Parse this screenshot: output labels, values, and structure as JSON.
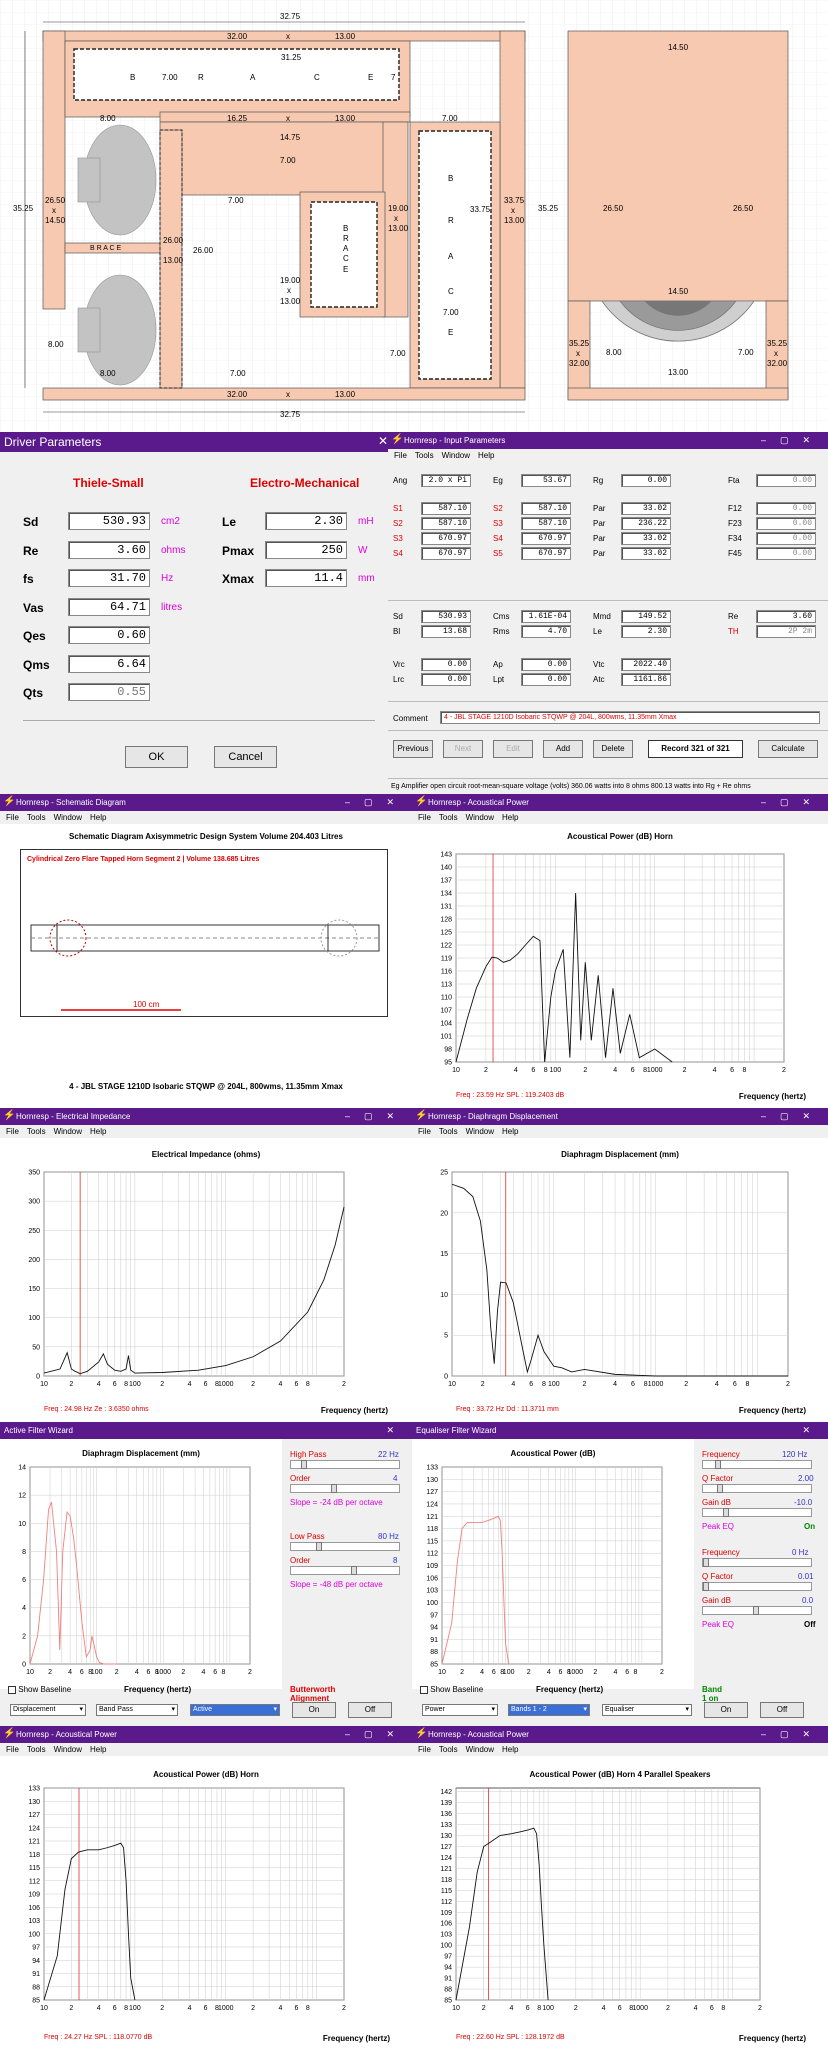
{
  "plan": {
    "top_dim": "32.75",
    "bottom_dim": "32.75",
    "left_dim": "35.25",
    "mid_right_dim": "35.25",
    "top_run": "32.00",
    "top_x": "x",
    "top_run_b": "13.00",
    "inner_top": "31.25",
    "brace_top": [
      "B",
      "7.00",
      "R",
      "A",
      "C",
      "E",
      "7"
    ],
    "r2_a": "8.00",
    "r2_b": "16.25",
    "r2_x": "x",
    "r2_c": "13.00",
    "r2_d": "7.00",
    "h1475": "14.75",
    "v700a": "7.00",
    "v700b": "7.00",
    "left_2650": "26.50",
    "left_x": "x",
    "left_1450": "14.50",
    "brace_mid": "B R A C E",
    "v2600a": "26.00",
    "v2600b": "26.00",
    "v1300": "13.00",
    "c19a": "19.00",
    "c19x": "x",
    "c19b": "13.00",
    "brace_c": [
      "B",
      "R",
      "A",
      "C",
      "E"
    ],
    "c19c": "19.00",
    "c19y": "x",
    "c19d": "13.00",
    "c3375": "33.75",
    "c3375b": "33.75",
    "c3375x": "x",
    "c3375c": "13.00",
    "brace_r": [
      "B",
      "R",
      "A",
      "C",
      "7.00",
      "E"
    ],
    "left_800": "8.00",
    "bl_800": "8.00",
    "bm_700": "7.00",
    "br_700": "7.00",
    "bot_run": "32.00",
    "bot_x": "x",
    "bot_run_b": "13.00",
    "side_1450a": "14.50",
    "side_2650a": "26.50",
    "side_2650b": "26.50",
    "side_1450b": "14.50",
    "side_3525a": "35.25",
    "side_x1": "x",
    "side_3200a": "32.00",
    "side_3525b": "35.25",
    "side_x2": "x",
    "side_3200b": "32.00",
    "side_800": "8.00",
    "side_1300": "13.00",
    "side_700": "7.00"
  },
  "driver": {
    "title": "Driver Parameters",
    "ts": "Thiele-Small",
    "em": "Electro-Mechanical",
    "rows": [
      {
        "label": "Sd",
        "value": "530.93",
        "unit": "cm2"
      },
      {
        "label": "Re",
        "value": "3.60",
        "unit": "ohms"
      },
      {
        "label": "fs",
        "value": "31.70",
        "unit": "Hz"
      },
      {
        "label": "Vas",
        "value": "64.71",
        "unit": "litres"
      },
      {
        "label": "Qes",
        "value": "0.60",
        "unit": ""
      },
      {
        "label": "Qms",
        "value": "6.64",
        "unit": ""
      },
      {
        "label": "Qts",
        "value": "0.55",
        "unit": ""
      }
    ],
    "rrows": [
      {
        "label": "Le",
        "value": "2.30",
        "unit": "mH"
      },
      {
        "label": "Pmax",
        "value": "250",
        "unit": "W"
      },
      {
        "label": "Xmax",
        "value": "11.4",
        "unit": "mm"
      }
    ],
    "ok": "OK",
    "cancel": "Cancel"
  },
  "input": {
    "title": "Hornresp - Input Parameters",
    "menu": [
      "File",
      "Tools",
      "Window",
      "Help"
    ],
    "r1": [
      {
        "l": "Ang",
        "v": "2.0 x Pi"
      },
      {
        "l": "Eg",
        "v": "53.67"
      },
      {
        "l": "Rg",
        "v": "0.00"
      },
      {
        "l": "Fta",
        "v": "0.00"
      }
    ],
    "grid": [
      [
        {
          "l": "S1",
          "v": "587.10"
        },
        {
          "l": "S2",
          "v": "587.10"
        },
        {
          "l": "Par",
          "v": "33.02"
        },
        {
          "l": "F12",
          "v": "0.00"
        }
      ],
      [
        {
          "l": "S2",
          "v": "587.10"
        },
        {
          "l": "S3",
          "v": "587.10"
        },
        {
          "l": "Par",
          "v": "236.22"
        },
        {
          "l": "F23",
          "v": "0.00"
        }
      ],
      [
        {
          "l": "S3",
          "v": "670.97"
        },
        {
          "l": "S4",
          "v": "670.97"
        },
        {
          "l": "Par",
          "v": "33.02"
        },
        {
          "l": "F34",
          "v": "0.00"
        }
      ],
      [
        {
          "l": "S4",
          "v": "670.97"
        },
        {
          "l": "S5",
          "v": "670.97"
        },
        {
          "l": "Par",
          "v": "33.02"
        },
        {
          "l": "F45",
          "v": "0.00"
        }
      ]
    ],
    "drv": [
      [
        {
          "l": "Sd",
          "v": "530.93"
        },
        {
          "l": "Cms",
          "v": "1.61E-04"
        },
        {
          "l": "Mmd",
          "v": "149.52"
        },
        {
          "l": "Re",
          "v": "3.60"
        }
      ],
      [
        {
          "l": "Bl",
          "v": "13.68"
        },
        {
          "l": "Rms",
          "v": "4.70"
        },
        {
          "l": "Le",
          "v": "2.30"
        },
        {
          "l": "TH",
          "v": "2P 2m"
        }
      ]
    ],
    "ch": [
      [
        {
          "l": "Vrc",
          "v": "0.00"
        },
        {
          "l": "Ap",
          "v": "0.00"
        },
        {
          "l": "Vtc",
          "v": "2022.40"
        }
      ],
      [
        {
          "l": "Lrc",
          "v": "0.00"
        },
        {
          "l": "Lpt",
          "v": "0.00"
        },
        {
          "l": "Atc",
          "v": "1161.86"
        }
      ]
    ],
    "comment_label": "Comment",
    "comment": "4 - JBL STAGE 1210D Isobaric STQWP @ 204L, 800wms, 11.35mm Xmax",
    "buttons": [
      "Previous",
      "Next",
      "Edit",
      "Add",
      "Delete"
    ],
    "record": "Record 321 of 321",
    "calc": "Calculate",
    "status": "Eg  Amplifier open circuit root-mean-square voltage  (volts)   360.06 watts into 8 ohms   800.13 watts into Rg + Re ohms"
  },
  "schem": {
    "title": "Hornresp - Schematic Diagram",
    "menu": [
      "File",
      "Tools",
      "Window",
      "Help"
    ],
    "heading": "Schematic Diagram   Axisymmetric Design   System Volume 204.403 Litres",
    "red": "Cylindrical Zero Flare Tapped Horn Segment 2 | Volume 138.685 Litres",
    "scale": "100 cm",
    "caption": "4 - JBL STAGE 1210D Isobaric STQWP @ 204L, 800wms, 11.35mm Xmax"
  },
  "ap1": {
    "title": "Hornresp - Acoustical Power",
    "menu": [
      "File",
      "Tools",
      "Window",
      "Help"
    ],
    "heading": "Acoustical Power (dB)   Horn",
    "status": "Freq : 23.59 Hz     SPL : 119.2403 dB",
    "xlabel": "Frequency (hertz)"
  },
  "imp": {
    "title": "Hornresp - Electrical Impedance",
    "menu": [
      "File",
      "Tools",
      "Window",
      "Help"
    ],
    "heading": "Electrical Impedance (ohms)",
    "status": "Freq : 24.98 Hz     Ze : 3.6350 ohms",
    "xlabel": "Frequency (hertz)"
  },
  "dd": {
    "title": "Hornresp - Diaphragm Displacement",
    "menu": [
      "File",
      "Tools",
      "Window",
      "Help"
    ],
    "heading": "Diaphragm Displacement (mm)",
    "status": "Freq : 33.72 Hz     Dd : 11.3711 mm",
    "xlabel": "Frequency (hertz)"
  },
  "afw": {
    "title": "Active Filter Wizard",
    "heading": "Diaphragm Displacement (mm)",
    "xlabel": "Frequency (hertz)",
    "show": "Show Baseline",
    "align": "Butterworth Alignment",
    "hp": "High Pass",
    "hp_v": "22 Hz",
    "order": "Order",
    "order_v": "4",
    "slope1": "Slope = -24 dB per octave",
    "lp": "Low Pass",
    "lp_v": "80 Hz",
    "order2": "Order",
    "order2_v": "8",
    "slope2": "Slope = -48 dB per octave",
    "s1": "Displacement",
    "s2": "Band Pass",
    "s3": "Active",
    "on": "On",
    "off": "Off"
  },
  "efw": {
    "title": "Equaliser Filter Wizard",
    "heading": "Acoustical Power (dB)",
    "xlabel": "Frequency (hertz)",
    "show": "Show Baseline",
    "band": "Band 1 on",
    "f1": "Frequency",
    "f1v": "120 Hz",
    "q1": "Q Factor",
    "q1v": "2.00",
    "g1": "Gain  dB",
    "g1v": "-10.0",
    "pk1": "Peak EQ",
    "pk1v": "On",
    "f2": "Frequency",
    "f2v": "0 Hz",
    "q2": "Q Factor",
    "q2v": "0.01",
    "g2": "Gain  dB",
    "g2v": "0.0",
    "pk2": "Peak EQ",
    "pk2v": "Off",
    "s1": "Power",
    "s2": "Bands 1 - 2",
    "s3": "Equaliser",
    "on": "On",
    "off": "Off"
  },
  "ap2": {
    "title": "Hornresp - Acoustical Power",
    "menu": [
      "File",
      "Tools",
      "Window",
      "Help"
    ],
    "heading": "Acoustical Power (dB)   Horn",
    "status": "Freq : 24.27 Hz     SPL : 118.0770 dB",
    "xlabel": "Frequency (hertz)"
  },
  "ap3": {
    "title": "Hornresp - Acoustical Power",
    "menu": [
      "File",
      "Tools",
      "Window",
      "Help"
    ],
    "heading": "Acoustical Power (dB)   Horn   4 Parallel Speakers",
    "status": "Freq : 22.60 Hz     SPL : 128.1972 dB",
    "xlabel": "Frequency (hertz)"
  },
  "chart_data": [
    {
      "type": "line",
      "id": "ap1",
      "title": "Acoustical Power (dB)   Horn",
      "xlabel": "Frequency (hertz)",
      "xscale": "log",
      "xlim": [
        10,
        20000
      ],
      "ylim": [
        95,
        143
      ],
      "yticks": [
        95,
        98,
        101,
        104,
        107,
        110,
        113,
        116,
        119,
        122,
        125,
        128,
        131,
        134,
        137,
        140,
        143
      ],
      "marker_hz": 23.59,
      "x": [
        10,
        13,
        16,
        20,
        23,
        26,
        30,
        35,
        42,
        50,
        60,
        70,
        78,
        90,
        100,
        120,
        140,
        160,
        180,
        200,
        230,
        270,
        320,
        380,
        450,
        560,
        700,
        1000,
        1500
      ],
      "y": [
        95,
        105,
        112,
        117,
        119.2,
        119,
        118,
        118.5,
        120,
        122,
        124,
        123,
        95,
        110,
        116,
        121,
        96,
        134,
        100,
        118,
        100,
        115,
        96,
        112,
        97,
        106,
        96,
        98,
        95
      ]
    },
    {
      "type": "line",
      "id": "imp",
      "title": "Electrical Impedance (ohms)",
      "xlabel": "Frequency (hertz)",
      "xscale": "log",
      "xlim": [
        10,
        20000
      ],
      "ylim": [
        0,
        350
      ],
      "yticks": [
        0,
        50,
        100,
        150,
        200,
        250,
        300,
        350
      ],
      "marker_hz": 24.98,
      "x": [
        10,
        15,
        18,
        20,
        22,
        25,
        30,
        40,
        45,
        50,
        60,
        70,
        80,
        85,
        90,
        100,
        200,
        500,
        1000,
        2000,
        4000,
        8000,
        12000,
        16000,
        20000
      ],
      "y": [
        5,
        12,
        40,
        12,
        8,
        4,
        8,
        24,
        38,
        20,
        10,
        8,
        12,
        35,
        10,
        5,
        6,
        10,
        18,
        33,
        60,
        110,
        165,
        225,
        290
      ]
    },
    {
      "type": "line",
      "id": "dd",
      "title": "Diaphragm Displacement (mm)",
      "xlabel": "Frequency (hertz)",
      "xscale": "log",
      "xlim": [
        10,
        20000
      ],
      "ylim": [
        0,
        25
      ],
      "yticks": [
        0,
        5,
        10,
        15,
        20,
        25
      ],
      "marker_hz": 33.72,
      "x": [
        10,
        13,
        16,
        19,
        22,
        24,
        26,
        28,
        30,
        34,
        40,
        50,
        55,
        60,
        70,
        80,
        100,
        120,
        150,
        200,
        400,
        1000,
        20000
      ],
      "y": [
        23.5,
        23,
        22,
        19,
        13,
        6,
        1.5,
        8,
        11.5,
        11.4,
        9,
        3,
        0.5,
        2,
        5,
        3,
        1.2,
        1,
        0.5,
        0.8,
        0.2,
        0,
        0
      ]
    },
    {
      "type": "line",
      "id": "afw",
      "title": "Diaphragm Displacement (mm)",
      "xlabel": "Frequency (hertz)",
      "xscale": "log",
      "xlim": [
        10,
        20000
      ],
      "ylim": [
        0,
        14
      ],
      "yticks": [
        0,
        2,
        4,
        6,
        8,
        10,
        12,
        14
      ],
      "color": "#f08080",
      "x": [
        10,
        13,
        16,
        19,
        21,
        25,
        28,
        31,
        36,
        40,
        45,
        50,
        60,
        70,
        80,
        85,
        90,
        100,
        110,
        130,
        200
      ],
      "y": [
        0,
        2,
        6,
        11,
        11.5,
        8,
        1,
        8,
        10.8,
        10.5,
        9,
        7,
        3,
        0.5,
        1,
        2,
        1.5,
        0.5,
        0.1,
        0,
        0
      ]
    },
    {
      "type": "line",
      "id": "efw",
      "title": "Acoustical Power (dB)",
      "xlabel": "Frequency (hertz)",
      "xscale": "log",
      "xlim": [
        10,
        20000
      ],
      "ylim": [
        85,
        133
      ],
      "yticks": [
        85,
        88,
        91,
        94,
        97,
        100,
        103,
        106,
        109,
        112,
        115,
        118,
        121,
        124,
        127,
        130,
        133
      ],
      "color": "#f08080",
      "x": [
        10,
        14,
        17,
        20,
        24,
        30,
        40,
        50,
        60,
        70,
        75,
        80,
        85,
        90,
        100
      ],
      "y": [
        85,
        95,
        110,
        118,
        119.5,
        119.5,
        119.5,
        120,
        120.5,
        121,
        120,
        112,
        100,
        90,
        85
      ]
    },
    {
      "type": "line",
      "id": "ap2",
      "title": "Acoustical Power (dB)   Horn",
      "xlabel": "Frequency (hertz)",
      "xscale": "log",
      "xlim": [
        10,
        20000
      ],
      "ylim": [
        85,
        133
      ],
      "yticks": [
        85,
        88,
        91,
        94,
        97,
        100,
        103,
        106,
        109,
        112,
        115,
        118,
        121,
        124,
        127,
        130,
        133
      ],
      "marker_hz": 24.27,
      "x": [
        10,
        14,
        17,
        20,
        24,
        30,
        40,
        50,
        60,
        70,
        75,
        80,
        85,
        90,
        100
      ],
      "y": [
        85,
        95,
        110,
        117,
        118.5,
        119,
        119,
        119.5,
        120,
        120.5,
        119.5,
        112,
        100,
        90,
        85
      ]
    },
    {
      "type": "line",
      "id": "ap3",
      "title": "Acoustical Power (dB)   Horn   4 Parallel Speakers",
      "xlabel": "Frequency (hertz)",
      "xscale": "log",
      "xlim": [
        10,
        20000
      ],
      "ylim": [
        85,
        143
      ],
      "yticks": [
        85,
        88,
        91,
        94,
        97,
        100,
        103,
        106,
        109,
        112,
        115,
        118,
        121,
        124,
        127,
        130,
        133,
        136,
        139,
        142
      ],
      "marker_hz": 22.6,
      "x": [
        10,
        14,
        17,
        20,
        23,
        30,
        40,
        50,
        60,
        70,
        75,
        80,
        85,
        90,
        100
      ],
      "y": [
        85,
        105,
        120,
        127,
        128,
        130,
        130.5,
        131,
        131.5,
        132,
        130.5,
        122,
        110,
        100,
        85
      ]
    }
  ]
}
